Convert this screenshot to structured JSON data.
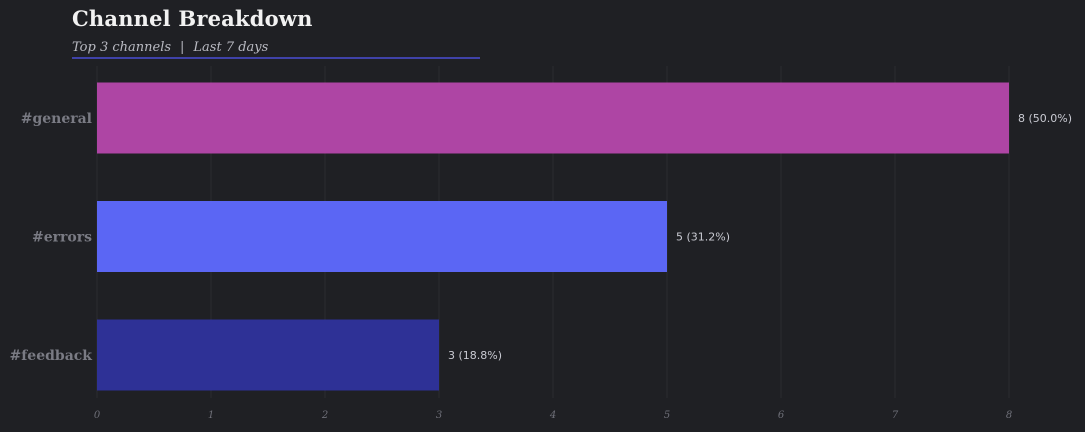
{
  "header": {
    "title": "Channel Breakdown",
    "subtitle_scope": "Top 3 channels",
    "subtitle_separator": "|",
    "subtitle_period": "Last 7 days",
    "underline_color": "#3f42a8"
  },
  "chart_data": {
    "type": "bar",
    "orientation": "horizontal",
    "categories": [
      "#general",
      "#errors",
      "#feedback"
    ],
    "values": [
      8,
      5,
      3
    ],
    "value_labels": [
      "8 (50.0%)",
      "5 (31.2%)",
      "3 (18.8%)"
    ],
    "colors": [
      "#ae45a4",
      "#5b66f4",
      "#2e3196"
    ],
    "xlim": [
      0,
      8.5
    ],
    "xticks": [
      0,
      1,
      2,
      3,
      4,
      5,
      6,
      7,
      8
    ],
    "xlabel": "",
    "ylabel": "",
    "grid": "vertical",
    "background": "#1f2024"
  }
}
